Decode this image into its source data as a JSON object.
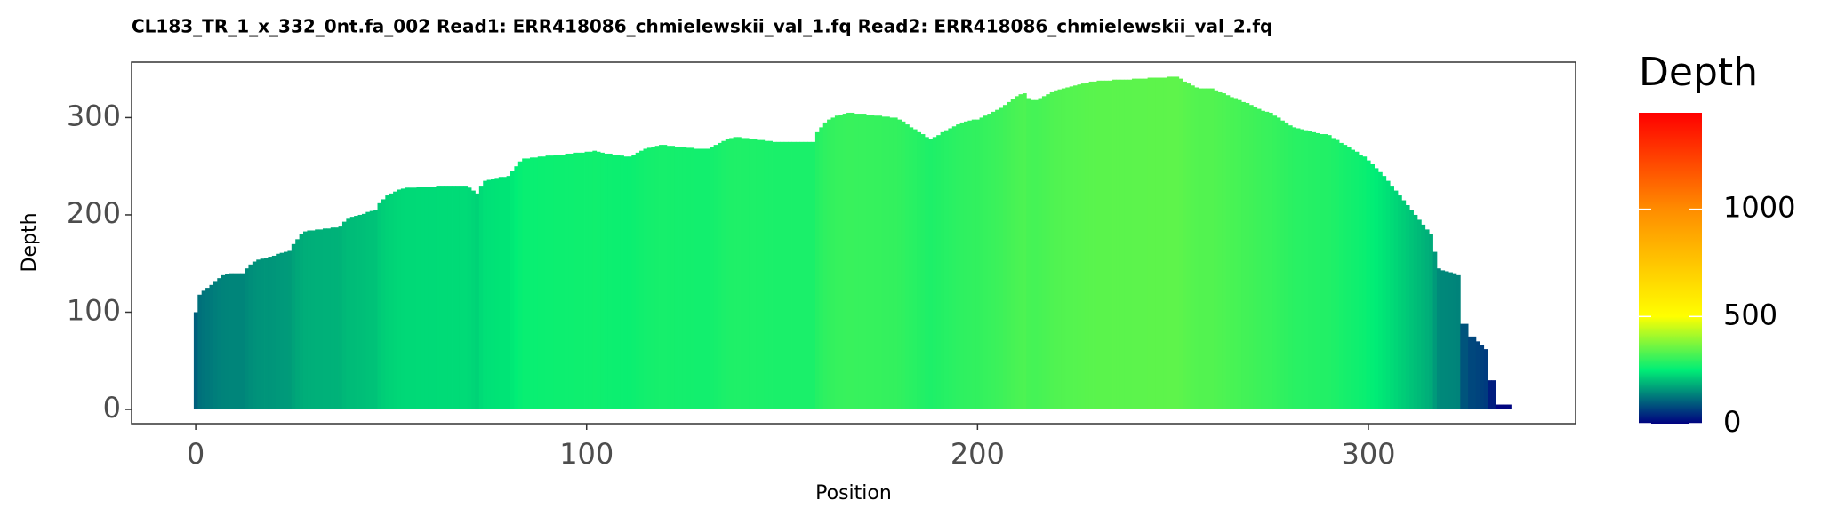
{
  "chart_data": {
    "type": "bar",
    "title": "CL183_TR_1_x_332_0nt.fa_002   Read1: ERR418086_chmielewskii_val_1.fq   Read2: ERR418086_chmielewskii_val_2.fq",
    "x_label": "Position",
    "y_label": "Depth",
    "legend_title": "Depth",
    "x": [
      0,
      1,
      2,
      3,
      4,
      5,
      6,
      7,
      8,
      9,
      10,
      11,
      12,
      13,
      14,
      15,
      16,
      17,
      18,
      19,
      20,
      21,
      22,
      23,
      24,
      25,
      26,
      27,
      28,
      29,
      30,
      31,
      32,
      33,
      34,
      35,
      36,
      37,
      38,
      39,
      40,
      41,
      42,
      43,
      44,
      45,
      46,
      47,
      48,
      49,
      50,
      51,
      52,
      53,
      54,
      55,
      56,
      57,
      58,
      59,
      60,
      61,
      62,
      63,
      64,
      65,
      66,
      67,
      68,
      69,
      70,
      71,
      72,
      73,
      74,
      75,
      76,
      77,
      78,
      79,
      80,
      81,
      82,
      83,
      84,
      85,
      86,
      87,
      88,
      89,
      90,
      91,
      92,
      93,
      94,
      95,
      96,
      97,
      98,
      99,
      100,
      101,
      102,
      103,
      104,
      105,
      106,
      107,
      108,
      109,
      110,
      111,
      112,
      113,
      114,
      115,
      116,
      117,
      118,
      119,
      120,
      121,
      122,
      123,
      124,
      125,
      126,
      127,
      128,
      129,
      130,
      131,
      132,
      133,
      134,
      135,
      136,
      137,
      138,
      139,
      140,
      141,
      142,
      143,
      144,
      145,
      146,
      147,
      148,
      149,
      150,
      151,
      152,
      153,
      154,
      155,
      156,
      157,
      158,
      159,
      160,
      161,
      162,
      163,
      164,
      165,
      166,
      167,
      168,
      169,
      170,
      171,
      172,
      173,
      174,
      175,
      176,
      177,
      178,
      179,
      180,
      181,
      182,
      183,
      184,
      185,
      186,
      187,
      188,
      189,
      190,
      191,
      192,
      193,
      194,
      195,
      196,
      197,
      198,
      199,
      200,
      201,
      202,
      203,
      204,
      205,
      206,
      207,
      208,
      209,
      210,
      211,
      212,
      213,
      214,
      215,
      216,
      217,
      218,
      219,
      220,
      221,
      222,
      223,
      224,
      225,
      226,
      227,
      228,
      229,
      230,
      231,
      232,
      233,
      234,
      235,
      236,
      237,
      238,
      239,
      240,
      241,
      242,
      243,
      244,
      245,
      246,
      247,
      248,
      249,
      250,
      251,
      252,
      253,
      254,
      255,
      256,
      257,
      258,
      259,
      260,
      261,
      262,
      263,
      264,
      265,
      266,
      267,
      268,
      269,
      270,
      271,
      272,
      273,
      274,
      275,
      276,
      277,
      278,
      279,
      280,
      281,
      282,
      283,
      284,
      285,
      286,
      287,
      288,
      289,
      290,
      291,
      292,
      293,
      294,
      295,
      296,
      297,
      298,
      299,
      300,
      301,
      302,
      303,
      304,
      305,
      306,
      307,
      308,
      309,
      310,
      311,
      312,
      313,
      314,
      315,
      316,
      317,
      318,
      319,
      320,
      321,
      322,
      323,
      324,
      325,
      326,
      327,
      328,
      329,
      330,
      331,
      332,
      333,
      334,
      335,
      336
    ],
    "values": [
      100,
      118,
      122,
      125,
      128,
      132,
      135,
      138,
      139,
      140,
      140,
      140,
      140,
      145,
      149,
      152,
      154,
      155,
      156,
      157,
      158,
      160,
      161,
      162,
      163,
      170,
      175,
      180,
      183,
      184,
      184,
      185,
      185,
      186,
      186,
      187,
      187,
      188,
      193,
      196,
      198,
      199,
      200,
      201,
      203,
      204,
      205,
      212,
      216,
      220,
      222,
      224,
      226,
      227,
      228,
      228,
      228,
      229,
      229,
      229,
      229,
      229,
      230,
      230,
      230,
      230,
      230,
      230,
      230,
      230,
      228,
      225,
      222,
      230,
      235,
      236,
      237,
      238,
      239,
      239,
      240,
      245,
      250,
      255,
      258,
      258,
      259,
      259,
      260,
      260,
      261,
      261,
      262,
      262,
      262,
      263,
      263,
      264,
      264,
      264,
      265,
      265,
      266,
      265,
      264,
      263,
      263,
      262,
      262,
      261,
      260,
      260,
      262,
      264,
      266,
      268,
      269,
      270,
      271,
      272,
      272,
      271,
      271,
      270,
      270,
      270,
      269,
      269,
      268,
      268,
      268,
      268,
      270,
      272,
      274,
      276,
      278,
      279,
      280,
      280,
      279,
      279,
      278,
      278,
      277,
      277,
      276,
      276,
      275,
      275,
      275,
      275,
      275,
      275,
      275,
      275,
      275,
      275,
      275,
      285,
      290,
      295,
      298,
      300,
      302,
      303,
      304,
      305,
      305,
      304,
      304,
      304,
      303,
      303,
      302,
      302,
      301,
      301,
      300,
      300,
      298,
      296,
      293,
      290,
      288,
      285,
      283,
      280,
      278,
      280,
      282,
      285,
      287,
      289,
      291,
      293,
      295,
      296,
      297,
      298,
      298,
      300,
      302,
      304,
      306,
      308,
      310,
      313,
      316,
      319,
      322,
      324,
      325,
      320,
      318,
      318,
      320,
      322,
      324,
      326,
      328,
      329,
      330,
      331,
      332,
      333,
      334,
      335,
      336,
      337,
      337,
      338,
      338,
      338,
      338,
      339,
      339,
      339,
      339,
      339,
      340,
      340,
      340,
      340,
      341,
      341,
      341,
      341,
      341,
      342,
      342,
      342,
      340,
      337,
      335,
      333,
      331,
      330,
      330,
      330,
      330,
      328,
      326,
      325,
      323,
      321,
      320,
      318,
      316,
      315,
      313,
      311,
      309,
      307,
      306,
      305,
      302,
      300,
      297,
      295,
      292,
      290,
      289,
      288,
      287,
      286,
      285,
      284,
      283,
      283,
      282,
      279,
      277,
      274,
      272,
      270,
      267,
      265,
      262,
      260,
      256,
      252,
      248,
      244,
      240,
      235,
      230,
      225,
      220,
      215,
      210,
      205,
      200,
      195,
      190,
      185,
      180,
      162,
      145,
      143,
      142,
      141,
      140,
      138,
      88,
      88,
      75,
      75,
      70,
      66,
      62,
      30,
      30,
      5,
      5,
      5,
      5
    ],
    "xlim": [
      -16.4,
      353
    ],
    "xticks": [
      0,
      100,
      200,
      300
    ],
    "ylim": [
      -14.6,
      357
    ],
    "yticks": [
      0,
      100,
      200,
      300
    ],
    "colorscale": [
      {
        "value": 0,
        "color": "#000080"
      },
      {
        "value": 250,
        "color": "#00ee76"
      },
      {
        "value": 500,
        "color": "#ffff00"
      },
      {
        "value": 1000,
        "color": "#ff8c00"
      },
      {
        "value": 1450,
        "color": "#ff0000"
      }
    ],
    "legend_lim": [
      0,
      1450
    ],
    "legend_ticks": [
      0,
      500,
      1000
    ]
  }
}
